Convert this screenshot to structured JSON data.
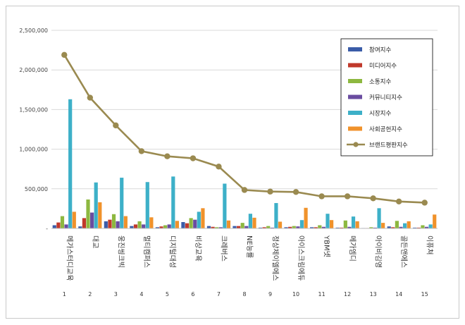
{
  "chart_data": {
    "type": "bar",
    "title": "",
    "xlabel": "",
    "ylabel": "",
    "ylim": [
      0,
      2500000
    ],
    "yticks": [
      0,
      500000,
      1000000,
      1500000,
      2000000,
      2500000
    ],
    "ytick_labels": [
      "-",
      "500,000",
      "1,000,000",
      "1,500,000",
      "2,000,000",
      "2,500,000"
    ],
    "grid": true,
    "legend_position": "top-right",
    "categories": [
      "메가스터디교육",
      "대교",
      "웅진씽크빅",
      "멀티캠퍼스",
      "디지털대성",
      "비상교육",
      "크레버스",
      "NE능률",
      "정상제이엘에스",
      "아이스크림에듀",
      "YBM넷",
      "메가엠디",
      "아이비김영",
      "골든앤에스",
      "이퓨쳐"
    ],
    "ranks": [
      "1",
      "2",
      "3",
      "4",
      "5",
      "6",
      "7",
      "8",
      "9",
      "10",
      "11",
      "12",
      "13",
      "14",
      "15"
    ],
    "series": [
      {
        "name": "참여지수",
        "type": "bar",
        "color": "#3a5ca8",
        "values": [
          40000,
          25000,
          90000,
          30000,
          15000,
          80000,
          30000,
          30000,
          10000,
          15000,
          15000,
          10000,
          5000,
          25000,
          10000
        ]
      },
      {
        "name": "미디어지수",
        "type": "bar",
        "color": "#c0392b",
        "values": [
          75000,
          130000,
          110000,
          50000,
          25000,
          65000,
          20000,
          30000,
          15000,
          20000,
          15000,
          10000,
          5000,
          15000,
          10000
        ]
      },
      {
        "name": "소통지수",
        "type": "bar",
        "color": "#8db840",
        "values": [
          155000,
          365000,
          180000,
          90000,
          40000,
          130000,
          15000,
          70000,
          30000,
          30000,
          40000,
          100000,
          15000,
          95000,
          40000
        ]
      },
      {
        "name": "커뮤니티지수",
        "type": "bar",
        "color": "#6a4ca0",
        "values": [
          50000,
          200000,
          90000,
          50000,
          50000,
          110000,
          15000,
          30000,
          10000,
          25000,
          20000,
          20000,
          10000,
          20000,
          20000
        ]
      },
      {
        "name": "시장지수",
        "type": "bar",
        "color": "#3db0c8",
        "values": [
          1630000,
          580000,
          640000,
          585000,
          655000,
          210000,
          565000,
          185000,
          320000,
          105000,
          185000,
          150000,
          255000,
          65000,
          50000
        ]
      },
      {
        "name": "사회공헌지수",
        "type": "bar",
        "color": "#f0922b",
        "values": [
          210000,
          330000,
          155000,
          140000,
          95000,
          255000,
          100000,
          135000,
          85000,
          260000,
          105000,
          90000,
          70000,
          90000,
          175000
        ]
      },
      {
        "name": "브랜드평판지수",
        "type": "line",
        "color": "#9a8a50",
        "values": [
          2190000,
          1650000,
          1300000,
          975000,
          910000,
          885000,
          780000,
          485000,
          465000,
          460000,
          405000,
          405000,
          380000,
          340000,
          325000
        ]
      }
    ]
  }
}
